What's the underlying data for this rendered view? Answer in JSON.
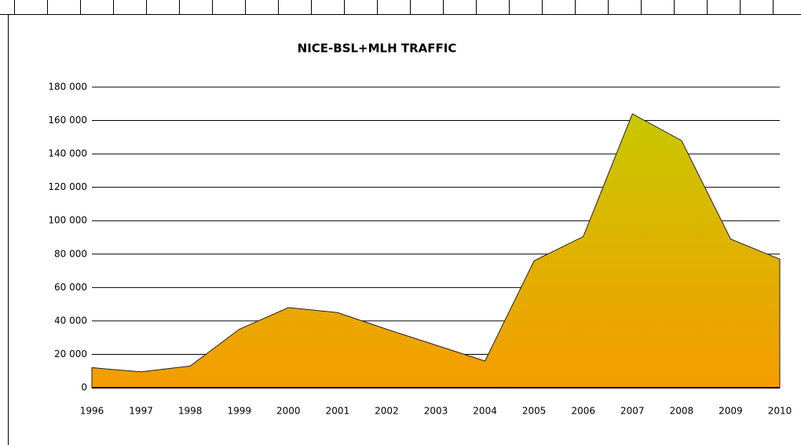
{
  "chart_data": {
    "type": "area",
    "title": "NICE-BSL+MLH TRAFFIC",
    "categories": [
      "1996",
      "1997",
      "1998",
      "1999",
      "2000",
      "2001",
      "2002",
      "2003",
      "2004",
      "2005",
      "2006",
      "2007",
      "2008",
      "2009",
      "2010"
    ],
    "values": [
      12000,
      9500,
      13000,
      35000,
      48000,
      45000,
      35000,
      25500,
      16000,
      76000,
      90500,
      164000,
      148000,
      89000,
      77000
    ],
    "color_top": "#c8c800",
    "color_bottom": "#f59c00",
    "ylim": [
      0,
      180000
    ],
    "yticks": [
      0,
      {
        "value": 20000,
        "label": "20 000"
      },
      {
        "value": 40000,
        "label": "40 000"
      },
      {
        "value": 60000,
        "label": "60 000"
      },
      {
        "value": 80000,
        "label": "80 000"
      },
      {
        "value": 100000,
        "label": "100 000"
      },
      {
        "value": 120000,
        "label": "120 000"
      },
      {
        "value": 140000,
        "label": "140 000"
      },
      {
        "value": 160000,
        "label": "160 000"
      },
      {
        "value": 180000,
        "label": "180 000"
      }
    ],
    "grid": true
  }
}
